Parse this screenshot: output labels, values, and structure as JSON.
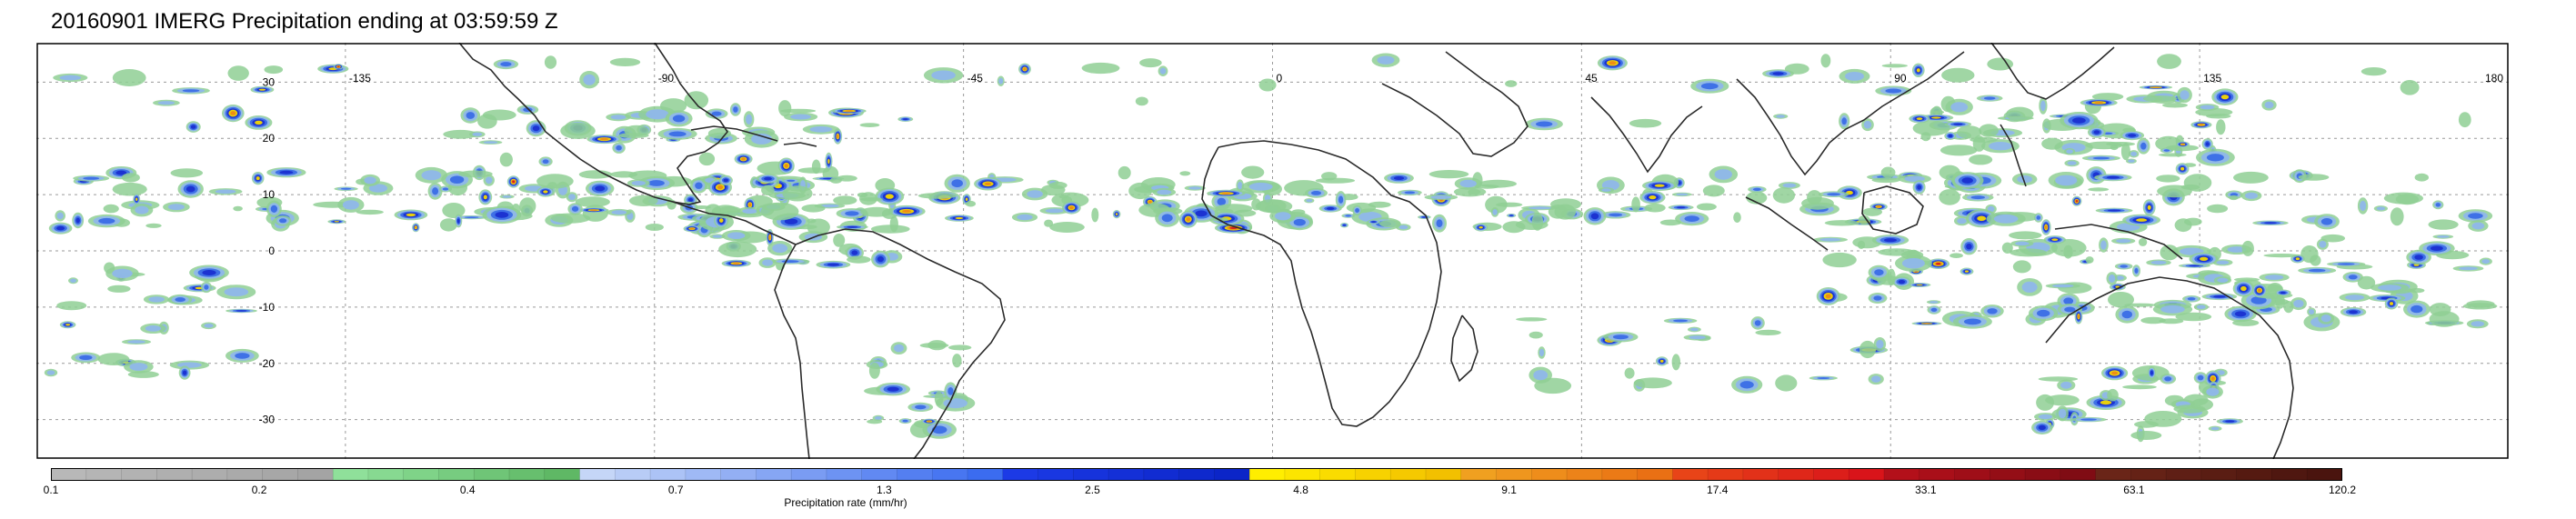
{
  "title": "20160901 IMERG Precipitation ending at 03:59:59 Z",
  "map": {
    "lon_range": [
      -180,
      180
    ],
    "lat_range": [
      -37,
      37
    ],
    "lon_ticks": [
      {
        "value": -135,
        "label": "-135"
      },
      {
        "value": -90,
        "label": "-90"
      },
      {
        "value": -45,
        "label": "-45"
      },
      {
        "value": 0,
        "label": "0"
      },
      {
        "value": 45,
        "label": "45"
      },
      {
        "value": 90,
        "label": "90"
      },
      {
        "value": 135,
        "label": "135"
      },
      {
        "value": 180,
        "label": "180"
      }
    ],
    "lat_ticks": [
      {
        "value": 30,
        "label": "30"
      },
      {
        "value": 20,
        "label": "20"
      },
      {
        "value": 10,
        "label": "10"
      },
      {
        "value": 0,
        "label": "0"
      },
      {
        "value": -10,
        "label": "-10"
      },
      {
        "value": -20,
        "label": "-20"
      },
      {
        "value": -30,
        "label": "-30"
      }
    ],
    "grid": true,
    "colors": {
      "frame": "#000000",
      "grid": "#9a9a9a",
      "coast": "#333333"
    }
  },
  "colorbar": {
    "label": "Precipitation rate (mm/hr)",
    "tick_labels": [
      "0.1",
      "0.2",
      "0.4",
      "0.7",
      "1.3",
      "2.5",
      "4.8",
      "9.1",
      "17.4",
      "33.1",
      "63.1",
      "120.2"
    ],
    "segments": [
      {
        "color": "#b3b3b3",
        "count": 8
      },
      {
        "color": "#8cd98c",
        "count": 7
      },
      {
        "color": "#a8c8f5",
        "count": 12
      },
      {
        "color": "#1f3be0",
        "count": 7
      },
      {
        "color": "#f5e300",
        "count": 6
      },
      {
        "color": "#f09a18",
        "count": 6
      },
      {
        "color": "#e2221e",
        "count": 6
      },
      {
        "color": "#9a0f14",
        "count": 6
      },
      {
        "color": "#5a1b14",
        "count": 7
      }
    ],
    "gradients": [
      [
        "#b8b8b8",
        "#a4a4a4"
      ],
      [
        "#8fe09a",
        "#5fb865"
      ],
      [
        "#c5d6f7",
        "#3b6cf0"
      ],
      [
        "#1c3ae6",
        "#0b25c8"
      ],
      [
        "#ffee00",
        "#f2c000"
      ],
      [
        "#f0a020",
        "#ea7014"
      ],
      [
        "#e84418",
        "#d9141a"
      ],
      [
        "#b3101a",
        "#800c14"
      ],
      [
        "#6a2518",
        "#4a140e"
      ]
    ]
  },
  "precip_palette": [
    "#8fcf94",
    "#8fb7ea",
    "#3b6de6",
    "#1a2fd0",
    "#f5d800",
    "#ee8a16",
    "#d81c1c"
  ]
}
